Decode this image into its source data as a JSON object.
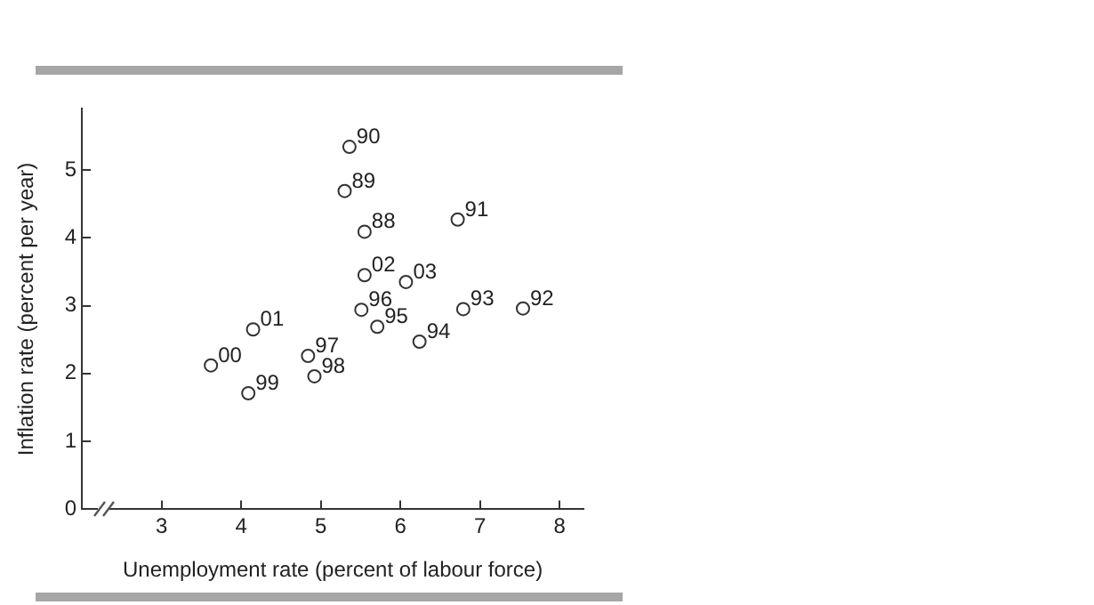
{
  "chart_data": {
    "type": "scatter",
    "xlabel": "Unemployment rate (percent of labour force)",
    "ylabel": "Inflation rate (percent per year)",
    "xlim": [
      2.0,
      8.3
    ],
    "xticks": [
      3,
      4,
      5,
      6,
      7,
      8
    ],
    "ylim": [
      0,
      5.9
    ],
    "yticks": [
      0,
      1,
      2,
      3,
      4,
      5
    ],
    "annotations": [
      {
        "text": "90",
        "x": 5.36,
        "y": 5.34
      },
      {
        "text": "89",
        "x": 5.3,
        "y": 4.69
      },
      {
        "text": "88",
        "x": 5.55,
        "y": 4.09
      },
      {
        "text": "91",
        "x": 6.72,
        "y": 4.27
      },
      {
        "text": "02",
        "x": 5.55,
        "y": 3.45
      },
      {
        "text": "03",
        "x": 6.07,
        "y": 3.35
      },
      {
        "text": "96",
        "x": 5.51,
        "y": 2.94
      },
      {
        "text": "95",
        "x": 5.71,
        "y": 2.69
      },
      {
        "text": "93",
        "x": 6.79,
        "y": 2.95
      },
      {
        "text": "92",
        "x": 7.54,
        "y": 2.96
      },
      {
        "text": "94",
        "x": 6.24,
        "y": 2.47
      },
      {
        "text": "01",
        "x": 4.15,
        "y": 2.65
      },
      {
        "text": "97",
        "x": 4.84,
        "y": 2.26
      },
      {
        "text": "00",
        "x": 3.62,
        "y": 2.12
      },
      {
        "text": "98",
        "x": 4.92,
        "y": 1.96
      },
      {
        "text": "99",
        "x": 4.09,
        "y": 1.71
      }
    ],
    "grid": false,
    "legend": false,
    "marker": "circle",
    "series": [
      {
        "color": "#333333",
        "x": [
          5.36,
          5.3,
          5.55,
          6.72,
          5.55,
          6.07,
          5.51,
          5.71,
          6.79,
          7.54,
          6.24,
          4.15,
          4.84,
          3.62,
          4.92,
          4.09
        ],
        "values": [
          5.34,
          4.69,
          4.09,
          4.27,
          3.45,
          3.35,
          2.94,
          2.69,
          2.95,
          2.96,
          2.47,
          2.65,
          2.26,
          2.12,
          1.96,
          1.71
        ]
      }
    ]
  }
}
